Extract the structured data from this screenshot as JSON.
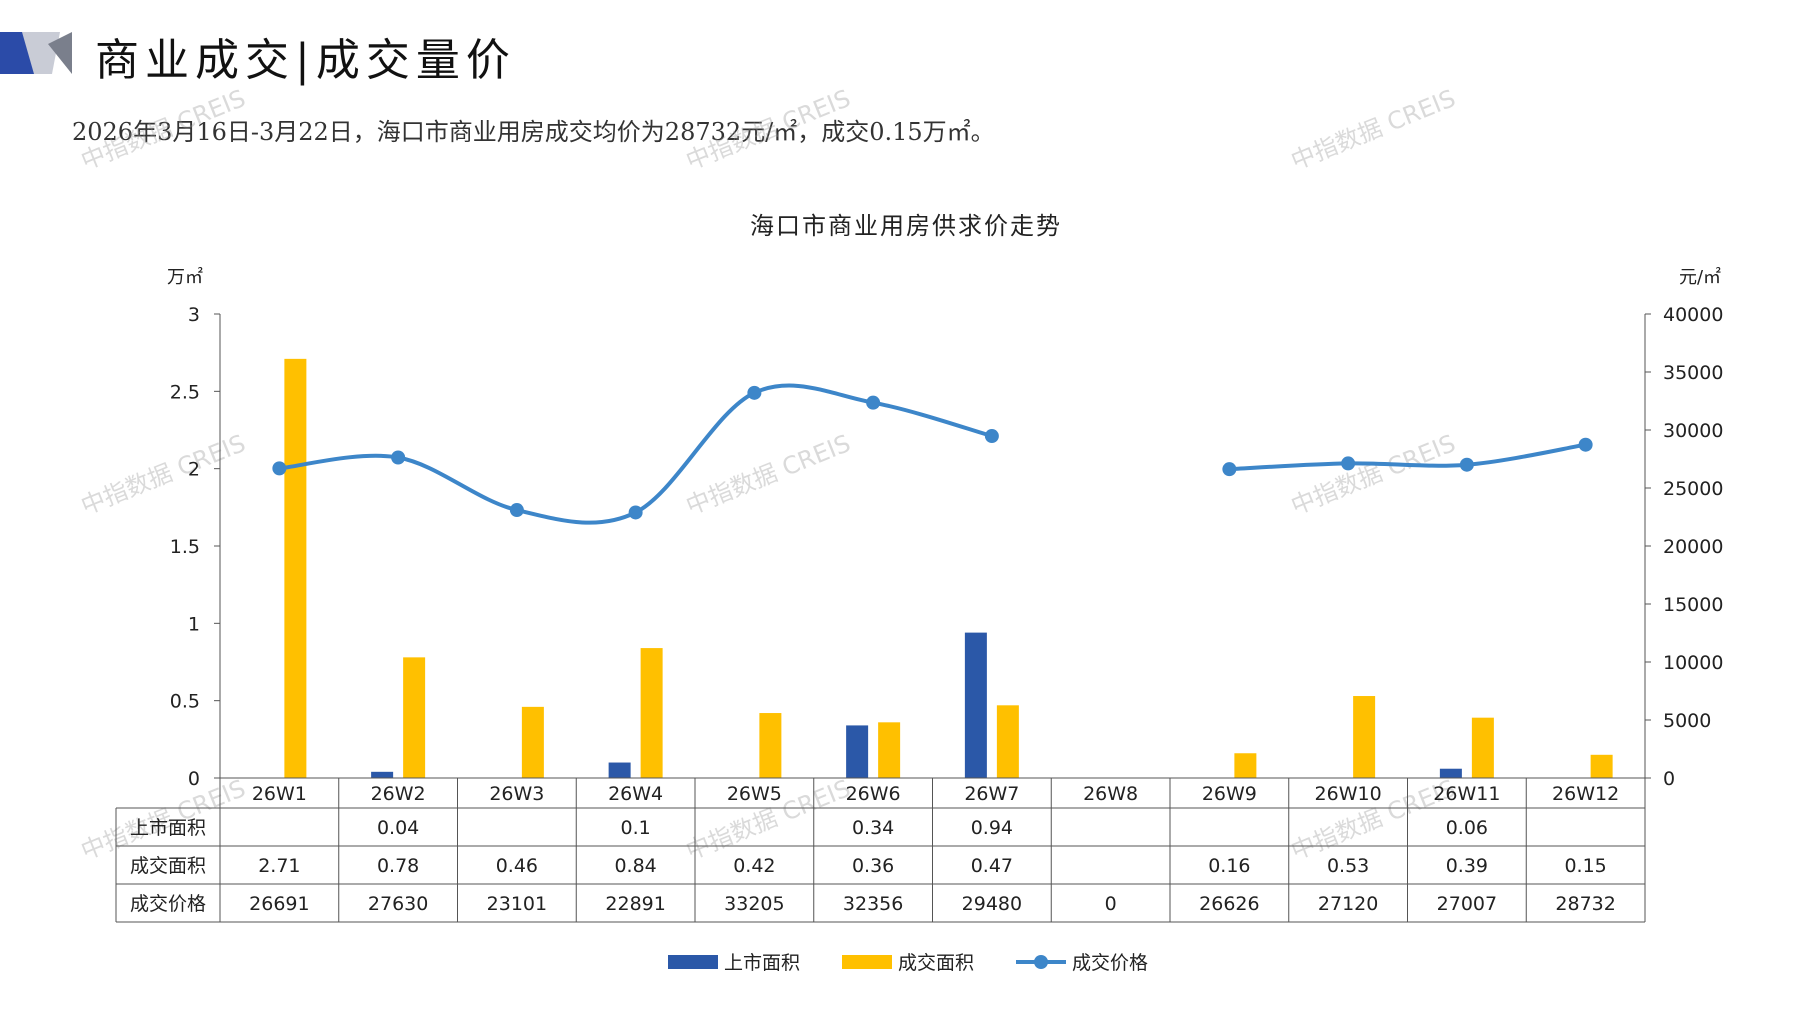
{
  "header": {
    "title": "商业成交|成交量价",
    "subtitle": "2026年3月16日-3月22日，海口市商业用房成交均价为28732元/㎡，成交0.15万㎡。"
  },
  "watermark": {
    "text": "中指数据 CREIS"
  },
  "colors": {
    "supply": "#2B58A8",
    "deal_area": "#FFC000",
    "price": "#3D86C9",
    "grid": "#555555"
  },
  "chart_data": {
    "type": "bar+line",
    "title": "海口市商业用房供求价走势",
    "y_left_unit": "万㎡",
    "y_right_unit": "元/㎡",
    "y_left_range": [
      0,
      3
    ],
    "y_left_ticks": [
      "3",
      "2.5",
      "2",
      "1.5",
      "1",
      "0.5",
      "0"
    ],
    "y_right_range": [
      0,
      40000
    ],
    "y_right_ticks": [
      "40000",
      "35000",
      "30000",
      "25000",
      "20000",
      "15000",
      "10000",
      "5000",
      "0"
    ],
    "categories": [
      "26W1",
      "26W2",
      "26W3",
      "26W4",
      "26W5",
      "26W6",
      "26W7",
      "26W8",
      "26W9",
      "26W10",
      "26W11",
      "26W12"
    ],
    "series": [
      {
        "name": "上市面积",
        "kind": "bar",
        "axis": "left",
        "values": [
          null,
          0.04,
          null,
          0.1,
          null,
          0.34,
          0.94,
          null,
          null,
          null,
          0.06,
          null
        ],
        "labels": [
          "",
          "0.04",
          "",
          "0.1",
          "",
          "0.34",
          "0.94",
          "",
          "",
          "",
          "0.06",
          ""
        ]
      },
      {
        "name": "成交面积",
        "kind": "bar",
        "axis": "left",
        "values": [
          2.71,
          0.78,
          0.46,
          0.84,
          0.42,
          0.36,
          0.47,
          null,
          0.16,
          0.53,
          0.39,
          0.15
        ],
        "labels": [
          "2.71",
          "0.78",
          "0.46",
          "0.84",
          "0.42",
          "0.36",
          "0.47",
          "",
          "0.16",
          "0.53",
          "0.39",
          "0.15"
        ]
      },
      {
        "name": "成交价格",
        "kind": "line",
        "axis": "right",
        "values": [
          26691,
          27630,
          23101,
          22891,
          33205,
          32356,
          29480,
          0,
          26626,
          27120,
          27007,
          28732
        ],
        "labels": [
          "26691",
          "27630",
          "23101",
          "22891",
          "33205",
          "32356",
          "29480",
          "0",
          "26626",
          "27120",
          "27007",
          "28732"
        ]
      }
    ],
    "legend_position": "bottom"
  }
}
